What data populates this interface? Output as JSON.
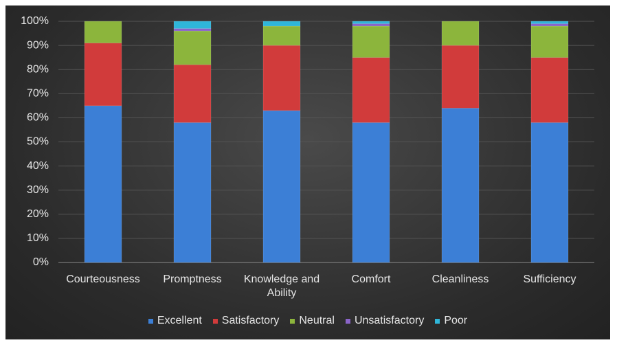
{
  "chart_data": {
    "type": "stacked-bar",
    "categories": [
      "Courteousness",
      "Promptness",
      "Knowledge and Ability",
      "Comfort",
      "Cleanliness",
      "Sufficiency"
    ],
    "series": [
      {
        "name": "Excellent",
        "color": "#3c7fd6",
        "values": [
          65,
          58,
          63,
          58,
          64,
          58
        ]
      },
      {
        "name": "Satisfactory",
        "color": "#d13b3b",
        "values": [
          26,
          24,
          27,
          27,
          26,
          27
        ]
      },
      {
        "name": "Neutral",
        "color": "#8cb53c",
        "values": [
          9,
          14,
          8,
          13,
          10,
          13
        ]
      },
      {
        "name": "Unsatisfactory",
        "color": "#8a64c8",
        "values": [
          0,
          1,
          0,
          1,
          0,
          1
        ]
      },
      {
        "name": "Poor",
        "color": "#2fb6d9",
        "values": [
          0,
          3,
          2,
          1,
          0,
          1
        ]
      }
    ],
    "ylim": [
      0,
      100
    ],
    "yticks": [
      {
        "value": 0,
        "label": "0%"
      },
      {
        "value": 10,
        "label": "10%"
      },
      {
        "value": 20,
        "label": "20%"
      },
      {
        "value": 30,
        "label": "30%"
      },
      {
        "value": 40,
        "label": "40%"
      },
      {
        "value": 50,
        "label": "50%"
      },
      {
        "value": 60,
        "label": "60%"
      },
      {
        "value": 70,
        "label": "70%"
      },
      {
        "value": 80,
        "label": "80%"
      },
      {
        "value": 90,
        "label": "90%"
      },
      {
        "value": 100,
        "label": "100%"
      }
    ],
    "grid": true
  }
}
